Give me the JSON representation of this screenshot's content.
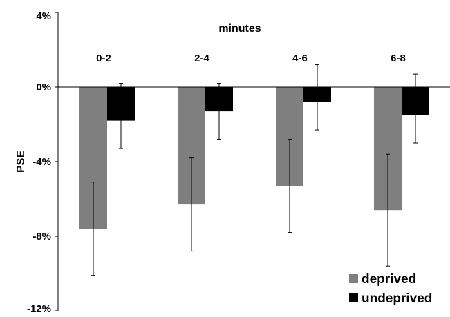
{
  "chart_data": {
    "type": "bar",
    "title": "minutes",
    "xlabel": "",
    "ylabel": "PSE",
    "categories": [
      "0-2",
      "2-4",
      "4-6",
      "6-8"
    ],
    "ylim": [
      -12,
      4
    ],
    "y_ticks": [
      4,
      0,
      -4,
      -8,
      -12
    ],
    "y_tick_labels": [
      "4%",
      "0%",
      "-4%",
      "-8%",
      "-12%"
    ],
    "grid": false,
    "legend_position": "bottom-right",
    "series": [
      {
        "name": "deprived",
        "color": "#7f7f7f",
        "values": [
          -7.6,
          -6.3,
          -5.3,
          -6.6
        ],
        "error_low": [
          -10.1,
          -8.8,
          -7.8,
          -9.6
        ],
        "error_high": [
          -5.1,
          -3.8,
          -2.8,
          -3.6
        ]
      },
      {
        "name": "undeprived",
        "color": "#000000",
        "values": [
          -1.8,
          -1.3,
          -0.8,
          -1.5
        ],
        "error_low": [
          -3.3,
          -2.8,
          -2.3,
          -3.0
        ],
        "error_high": [
          0.2,
          0.2,
          1.2,
          0.7
        ]
      }
    ]
  }
}
